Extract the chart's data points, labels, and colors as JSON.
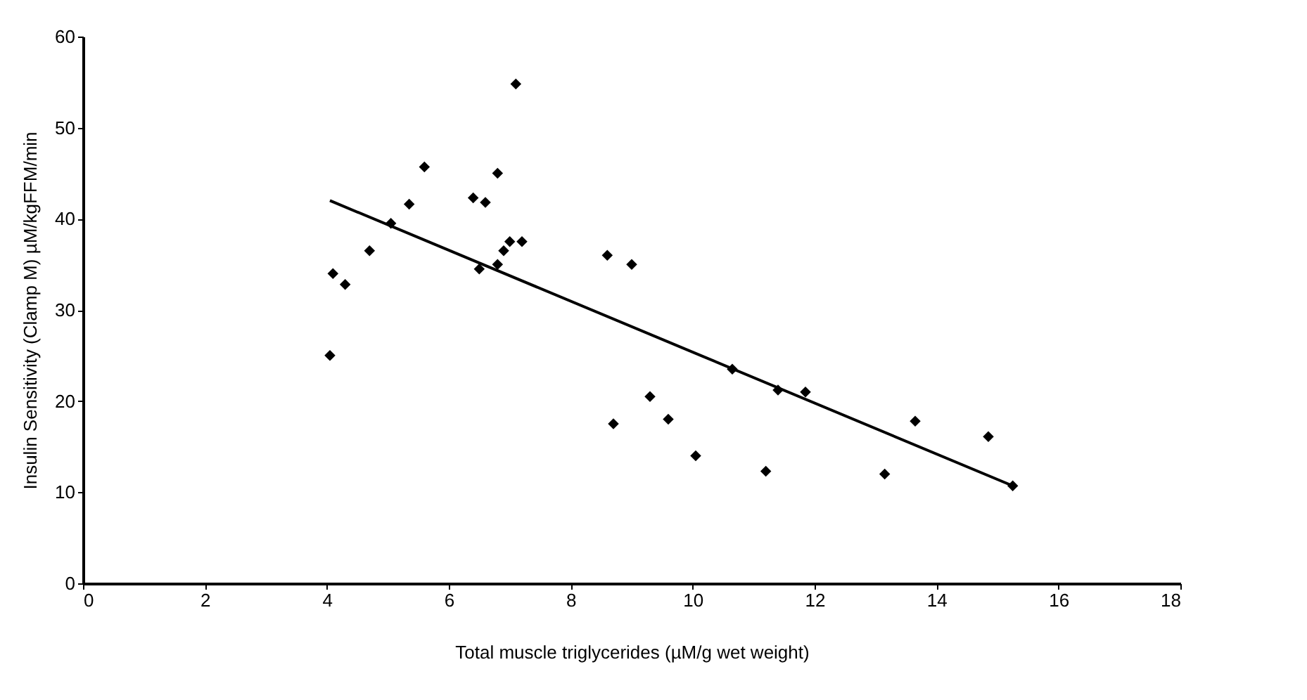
{
  "chart_data": {
    "type": "scatter",
    "xlabel": "Total muscle triglycerides (µM/g wet weight)",
    "ylabel": "Insulin Sensitivity (Clamp M) µM/kgFFM/min",
    "xlim": [
      0,
      18
    ],
    "xticks": [
      0,
      2,
      4,
      6,
      8,
      10,
      12,
      14,
      16,
      18
    ],
    "ylim": [
      0,
      60
    ],
    "yticks": [
      0,
      10,
      20,
      30,
      40,
      50,
      60
    ],
    "grid": false,
    "marker": "diamond",
    "series": [
      {
        "color": "#000000",
        "x": [
          4.05,
          4.1,
          4.3,
          4.7,
          5.05,
          5.35,
          5.6,
          6.4,
          6.6,
          6.5,
          6.8,
          6.8,
          6.9,
          7.0,
          7.1,
          7.2,
          8.6,
          9.0,
          8.7,
          9.3,
          9.6,
          10.05,
          10.65,
          11.2,
          11.4,
          11.85,
          13.15,
          13.65,
          14.85,
          15.25
        ],
        "values": [
          25,
          34,
          32.8,
          36.5,
          39.5,
          41.6,
          45.7,
          42.3,
          41.8,
          34.5,
          35,
          45,
          36.5,
          37.5,
          54.8,
          37.5,
          36,
          35,
          17.5,
          20.5,
          18,
          14,
          23.5,
          12.3,
          21.2,
          21,
          12,
          17.8,
          16.1,
          10.7
        ]
      },
      {
        "type": "line",
        "color": "#000000",
        "line_style": "solid",
        "marker": "none",
        "x": [
          4.05,
          15.25
        ],
        "values": [
          42,
          10.7
        ]
      }
    ]
  }
}
